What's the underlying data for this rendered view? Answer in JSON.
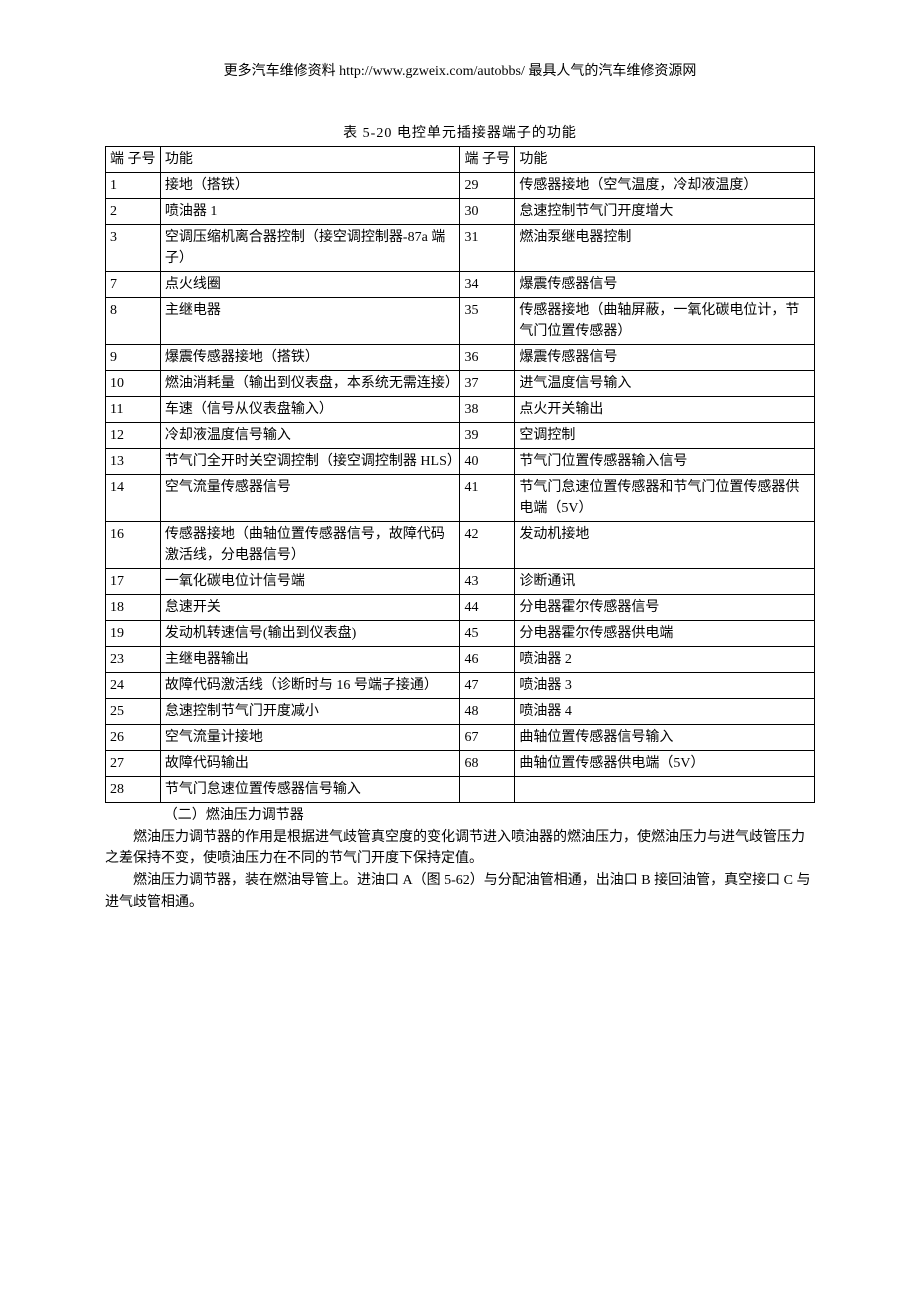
{
  "header": "更多汽车维修资料  http://www.gzweix.com/autobbs/   最具人气的汽车维修资源网",
  "caption": "表 5-20      电控单元插接器端子的功能",
  "table": {
    "head": {
      "no": "端 子号",
      "fn": "功能"
    },
    "rows": [
      {
        "l_no": "1",
        "l_fn": "接地（搭铁）",
        "r_no": "29",
        "r_fn": "传感器接地（空气温度，冷却液温度）"
      },
      {
        "l_no": "2",
        "l_fn": "喷油器 1",
        "r_no": "30",
        "r_fn": "怠速控制节气门开度增大"
      },
      {
        "l_no": "3",
        "l_fn": "空调压缩机离合器控制（接空调控制器-87a 端子）",
        "r_no": "31",
        "r_fn": "燃油泵继电器控制"
      },
      {
        "l_no": "7",
        "l_fn": "点火线圈",
        "r_no": "34",
        "r_fn": "爆震传感器信号"
      },
      {
        "l_no": "8",
        "l_fn": "主继电器",
        "r_no": "35",
        "r_fn": "传感器接地（曲轴屏蔽，一氧化碳电位计，节气门位置传感器）"
      },
      {
        "l_no": "9",
        "l_fn": "爆震传感器接地（搭铁）",
        "r_no": "36",
        "r_fn": "爆震传感器信号"
      },
      {
        "l_no": "10",
        "l_fn": "燃油消耗量（输出到仪表盘，本系统无需连接）",
        "r_no": "37",
        "r_fn": "进气温度信号输入"
      },
      {
        "l_no": "11",
        "l_fn": "车速（信号从仪表盘输入）",
        "r_no": "38",
        "r_fn": "点火开关输出"
      },
      {
        "l_no": "12",
        "l_fn": "冷却液温度信号输入",
        "r_no": "39",
        "r_fn": "空调控制"
      },
      {
        "l_no": "13",
        "l_fn": "节气门全开时关空调控制（接空调控制器 HLS）",
        "r_no": "40",
        "r_fn": "节气门位置传感器输入信号"
      },
      {
        "l_no": "14",
        "l_fn": "空气流量传感器信号",
        "r_no": "41",
        "r_fn": "节气门怠速位置传感器和节气门位置传感器供电端（5V）"
      },
      {
        "l_no": "16",
        "l_fn": "传感器接地（曲轴位置传感器信号，故障代码激活线，分电器信号）",
        "r_no": "42",
        "r_fn": "发动机接地"
      },
      {
        "l_no": "17",
        "l_fn": "一氧化碳电位计信号端",
        "r_no": "43",
        "r_fn": "诊断通讯"
      },
      {
        "l_no": "18",
        "l_fn": "怠速开关",
        "r_no": "44",
        "r_fn": "分电器霍尔传感器信号"
      },
      {
        "l_no": "19",
        "l_fn": "发动机转速信号(输出到仪表盘)",
        "r_no": "45",
        "r_fn": "分电器霍尔传感器供电端"
      },
      {
        "l_no": "23",
        "l_fn": "主继电器输出",
        "r_no": "46",
        "r_fn": "喷油器 2"
      },
      {
        "l_no": "24",
        "l_fn": "故障代码激活线（诊断时与 16 号端子接通）",
        "r_no": "47",
        "r_fn": "喷油器 3"
      },
      {
        "l_no": "25",
        "l_fn": "怠速控制节气门开度减小",
        "r_no": "48",
        "r_fn": "喷油器 4"
      },
      {
        "l_no": "26",
        "l_fn": "空气流量计接地",
        "r_no": "67",
        "r_fn": "曲轴位置传感器信号输入"
      },
      {
        "l_no": "27",
        "l_fn": "故障代码输出",
        "r_no": "68",
        "r_fn": "曲轴位置传感器供电端（5V）"
      },
      {
        "l_no": "28",
        "l_fn": "节气门怠速位置传感器信号输入",
        "r_no": "",
        "r_fn": ""
      }
    ]
  },
  "body": {
    "p1": "（二）燃油压力调节器",
    "p2": "燃油压力调节器的作用是根据进气歧管真空度的变化调节进入喷油器的燃油压力，使燃油压力与进气歧管压力之差保持不变，使喷油压力在不同的节气门开度下保持定值。",
    "p3": "燃油压力调节器，装在燃油导管上。进油口 A（图 5-62）与分配油管相通，出油口 B 接回油管，真空接口 C 与进气歧管相通。"
  }
}
